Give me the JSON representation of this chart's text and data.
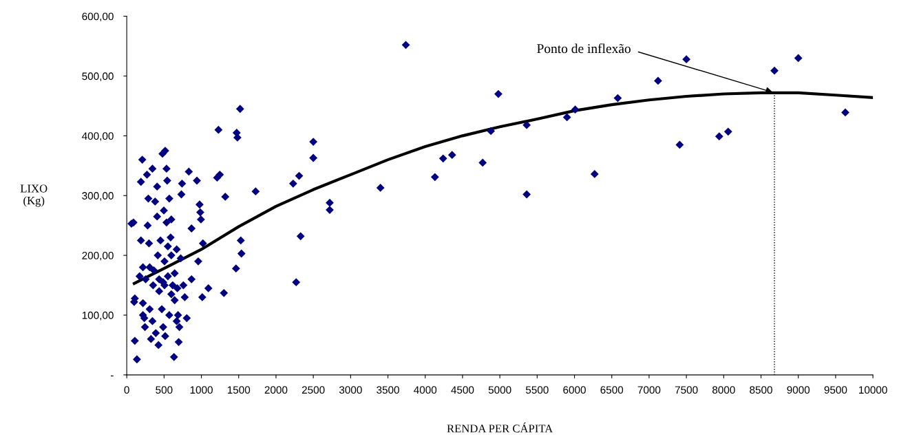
{
  "chart_data": {
    "type": "scatter",
    "xlabel": "RENDA PER CÁPITA",
    "ylabel": "LIXO\n(Kg)",
    "xlim": [
      0,
      10000
    ],
    "xticks": [
      0,
      500,
      1000,
      1500,
      2000,
      2500,
      3000,
      3500,
      4000,
      4500,
      5000,
      5500,
      6000,
      6500,
      7000,
      7500,
      8000,
      8500,
      9000,
      9500,
      10000
    ],
    "ylim": [
      0,
      600
    ],
    "yticks": [
      {
        "value": 0,
        "label": "-"
      },
      {
        "value": 100,
        "label": "100,00"
      },
      {
        "value": 200,
        "label": "200,00"
      },
      {
        "value": 300,
        "label": "300,00"
      },
      {
        "value": 400,
        "label": "400,00"
      },
      {
        "value": 500,
        "label": "500,00"
      },
      {
        "value": 600,
        "label": "600,00"
      }
    ],
    "grid": false,
    "series": [
      {
        "marker": "diamond",
        "color": "#000080",
        "x": [
          63,
          90,
          108,
          99,
          108,
          136,
          172,
          190,
          208,
          190,
          217,
          217,
          217,
          235,
          253,
          244,
          271,
          280,
          289,
          298,
          307,
          307,
          325,
          344,
          344,
          353,
          362,
          380,
          389,
          407,
          407,
          416,
          425,
          434,
          434,
          452,
          479,
          470,
          488,
          488,
          497,
          506,
          506,
          515,
          515,
          533,
          533,
          542,
          551,
          551,
          570,
          570,
          588,
          597,
          597,
          597,
          615,
          633,
          642,
          642,
          669,
          678,
          687,
          696,
          705,
          723,
          732,
          741,
          669,
          759,
          777,
          804,
          832,
          868,
          868,
          940,
          958,
          976,
          985,
          994,
          1012,
          1021,
          1094,
          1211,
          1229,
          1247,
          1302,
          1320,
          1464,
          1473,
          1483,
          1519,
          1528,
          1537,
          1727,
          2230,
          2270,
          2310,
          2330,
          2500,
          2500,
          2720,
          2720,
          3400,
          3740,
          4130,
          4240,
          4360,
          4770,
          4880,
          4980,
          5360,
          5360,
          5900,
          6010,
          6270,
          6580,
          7120,
          7410,
          7500,
          7940,
          8060,
          8680,
          9000,
          9630
        ],
        "values": [
          253,
          255,
          128,
          122,
          57,
          26,
          165,
          323,
          360,
          225,
          180,
          120,
          100,
          95,
          160,
          80,
          335,
          250,
          295,
          220,
          180,
          110,
          60,
          345,
          90,
          150,
          175,
          290,
          70,
          315,
          265,
          200,
          50,
          140,
          160,
          225,
          370,
          110,
          155,
          80,
          275,
          190,
          150,
          65,
          375,
          345,
          255,
          325,
          215,
          165,
          295,
          100,
          230,
          260,
          200,
          135,
          150,
          30,
          170,
          125,
          210,
          145,
          100,
          55,
          80,
          195,
          302,
          320,
          90,
          150,
          130,
          95,
          340,
          245,
          160,
          325,
          190,
          285,
          272,
          260,
          130,
          220,
          145,
          330,
          410,
          335,
          137,
          298,
          178,
          405,
          397,
          445,
          225,
          203,
          307,
          320,
          155,
          333,
          232,
          390,
          363,
          288,
          276,
          313,
          552,
          331,
          362,
          368,
          355,
          408,
          470,
          302,
          418,
          431,
          444,
          336,
          463,
          492,
          385,
          528,
          399,
          407,
          509,
          530,
          439
        ]
      },
      {
        "type": "line",
        "marker": "none",
        "line_style": "solid",
        "color": "#000000",
        "x": [
          100,
          500,
          1000,
          1500,
          2000,
          2500,
          3000,
          3500,
          4000,
          4500,
          5000,
          5500,
          6000,
          6500,
          7000,
          7500,
          8000,
          8500,
          9000,
          9500,
          10000
        ],
        "values": [
          153,
          178,
          210,
          248,
          282,
          310,
          335,
          360,
          382,
          400,
          415,
          428,
          442,
          452,
          460,
          466,
          470,
          472,
          472,
          468,
          464
        ]
      }
    ],
    "ref_lines": [
      {
        "axis": "x",
        "value": 8680,
        "line_style": "dotted",
        "color": "#000000"
      }
    ],
    "annotations": [
      {
        "text": "Ponto de inflexão",
        "x": 8680,
        "y": 472
      }
    ]
  }
}
